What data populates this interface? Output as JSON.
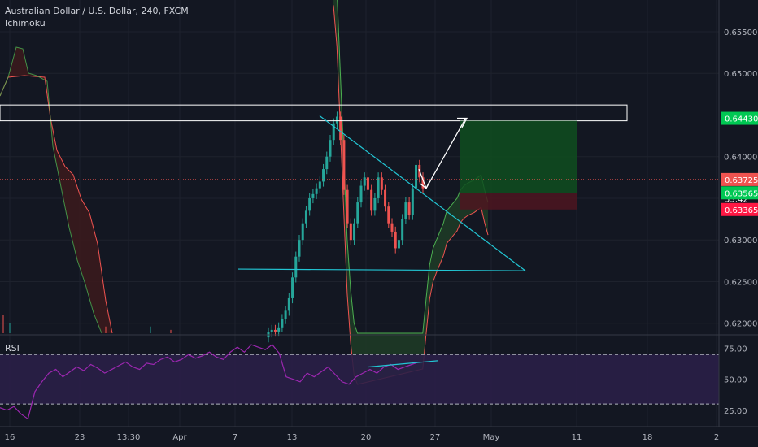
{
  "header": {
    "title": "Australian Dollar / U.S. Dollar, 240, FXCM",
    "indicator": "Ichimoku"
  },
  "rsi_pane": {
    "label": "RSI"
  },
  "colors": {
    "background": "#131722",
    "up": "#26a69a",
    "down": "#ef5350",
    "kumo_bull": "#1e3a26",
    "kumo_bear": "#3a1a1d",
    "trendline": "#22c6d4",
    "target_zone": "#0f4d1e",
    "stop_zone": "#4d1520",
    "rsi_band": "#2a1f47",
    "rsi_line": "#9c27b0"
  },
  "chart_data": [
    {
      "type": "line",
      "title": "Australian Dollar / U.S. Dollar, 240, FXCM",
      "subtitle": "Ichimoku",
      "x_tick_labels": [
        "16",
        "23",
        "13:30",
        "Apr",
        "7",
        "13",
        "20",
        "27",
        "May",
        "11",
        "18",
        "2"
      ],
      "y_tick_labels": [
        "0.65500",
        "0.65000",
        "0.64500",
        "0.64000",
        "0.63500",
        "0.63000",
        "0.62500",
        "0.62000"
      ],
      "ylim": [
        0.6188,
        0.6588
      ],
      "series": [
        {
          "name": "",
          "role": "close",
          "values": [
            0.6189,
            0.6192,
            0.619,
            0.6195,
            0.6205,
            0.6215,
            0.623,
            0.6255,
            0.628,
            0.63,
            0.632,
            0.6335,
            0.635,
            0.6355,
            0.6362,
            0.637,
            0.6385,
            0.64,
            0.642,
            0.644,
            0.6448,
            0.642,
            0.636,
            0.632,
            0.63,
            0.632,
            0.6345,
            0.6365,
            0.6375,
            0.636,
            0.6335,
            0.635,
            0.6375,
            0.636,
            0.634,
            0.632,
            0.631,
            0.629,
            0.63,
            0.6325,
            0.6345,
            0.633,
            0.6362,
            0.639,
            0.6375,
            0.6362
          ]
        },
        {
          "name": "",
          "role": "kumo_upper",
          "values": [
            0.665,
            0.66,
            0.65,
            0.64,
            0.63,
            0.624,
            0.62,
            0.6188,
            null,
            null,
            null,
            null,
            null,
            null,
            null,
            null,
            null,
            null,
            null,
            null,
            null,
            null,
            null,
            null,
            null,
            null,
            0.6188,
            0.623,
            0.627,
            0.629,
            0.63,
            0.631,
            0.632,
            0.6335,
            0.634,
            0.6345,
            0.635,
            0.636,
            0.6365,
            0.6368,
            0.637,
            0.6372,
            0.6375,
            0.6378,
            0.636,
            0.6345
          ]
        }
      ],
      "annotations": {
        "resistance_zone": [
          0.6443,
          0.6462
        ],
        "descending_trendline": [
          [
            0.6449,
            "Apr 16"
          ],
          [
            0.6263,
            "May 1"
          ]
        ],
        "horizontal_support": 0.6263,
        "target": 0.6443,
        "entry": 0.63565,
        "stop": 0.63365,
        "price_labels": [
          "0.64430",
          "0.63725",
          "53:42",
          "0.63565",
          "0.63365"
        ]
      }
    },
    {
      "type": "line",
      "title": "RSI",
      "y_tick_labels": [
        "75.00",
        "50.00",
        "25.00"
      ],
      "ylim": [
        15,
        82
      ],
      "bands": [
        70,
        30
      ],
      "series": [
        {
          "name": "",
          "values": [
            27,
            25,
            28,
            22,
            18,
            40,
            48,
            55,
            58,
            52,
            56,
            60,
            57,
            62,
            59,
            55,
            58,
            61,
            64,
            60,
            58,
            63,
            62,
            66,
            68,
            64,
            66,
            70,
            67,
            69,
            72,
            68,
            66,
            72,
            76,
            72,
            78,
            76,
            74,
            78,
            71,
            52,
            50,
            48,
            55,
            52,
            56,
            60,
            54,
            48,
            46,
            52,
            55,
            58,
            55,
            60,
            62,
            58,
            60,
            62,
            64
          ]
        }
      ]
    }
  ]
}
